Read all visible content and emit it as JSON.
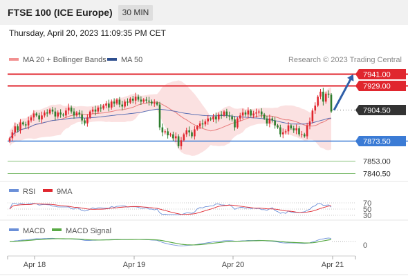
{
  "header": {
    "title": "FTSE 100 (ICE Europe)",
    "timeframe": "30 MIN",
    "datetime": "Thursday, April 20, 2023 11:09:35 PM CET"
  },
  "legend": {
    "ma20_label": "MA 20 + Bollinger Bands",
    "ma50_label": "MA 50",
    "credit": "Research © 2023 Trading Central"
  },
  "colors": {
    "resistance": "#e0262e",
    "support_strong": "#3b7bd5",
    "support_weak": "#5aaa46",
    "current": "#333333",
    "bull": "#e0262e",
    "bear": "#2d7d2d",
    "bollinger": "#f7c9c9",
    "ma20": "#e87a7a",
    "ma50": "#5a6fb4",
    "arrow": "#2f5fa8",
    "rsi": "#6a8fd8",
    "rsi_9ma": "#e0262e",
    "macd": "#6a8fd8",
    "macd_signal": "#5aaa46"
  },
  "chart_data": [
    {
      "type": "candlestick",
      "title": "FTSE 100 (ICE Europe) 30 MIN",
      "x_ticks": [
        "Apr 18",
        "Apr 19",
        "Apr 20",
        "Apr 21"
      ],
      "ylim": [
        7835,
        7950
      ],
      "levels": [
        {
          "value": 7941.0,
          "label": "7941.00",
          "kind": "resistance"
        },
        {
          "value": 7929.0,
          "label": "7929.00",
          "kind": "resistance"
        },
        {
          "value": 7904.5,
          "label": "7904.50",
          "kind": "current"
        },
        {
          "value": 7873.5,
          "label": "7873.50",
          "kind": "support"
        },
        {
          "value": 7853.0,
          "label": "7853.00",
          "kind": "support_weak"
        },
        {
          "value": 7840.5,
          "label": "7840.50",
          "kind": "support_weak"
        }
      ],
      "closes": [
        7876,
        7882,
        7888,
        7884,
        7892,
        7890,
        7889,
        7894,
        7897,
        7901,
        7899,
        7895,
        7899,
        7902,
        7901,
        7905,
        7903,
        7898,
        7902,
        7900,
        7899,
        7904,
        7907,
        7903,
        7899,
        7902,
        7900,
        7894,
        7891,
        7897,
        7903,
        7905,
        7903,
        7907,
        7906,
        7909,
        7911,
        7907,
        7913,
        7911,
        7915,
        7910,
        7908,
        7913,
        7912,
        7916,
        7914,
        7918,
        7915,
        7913,
        7915,
        7914,
        7913,
        7911,
        7912,
        7910,
        7887,
        7882,
        7883,
        7879,
        7880,
        7876,
        7878,
        7868,
        7874,
        7880,
        7884,
        7882,
        7878,
        7885,
        7888,
        7891,
        7890,
        7893,
        7896,
        7895,
        7898,
        7895,
        7900,
        7899,
        7903,
        7899,
        7898,
        7895,
        7887,
        7896,
        7899,
        7902,
        7900,
        7904,
        7899,
        7901,
        7902,
        7903,
        7900,
        7896,
        7891,
        7896,
        7894,
        7889,
        7887,
        7880,
        7882,
        7883,
        7889,
        7886,
        7884,
        7886,
        7880,
        7880,
        7878,
        7889,
        7893,
        7904,
        7909,
        7918,
        7923,
        7913,
        7921,
        7920,
        7903
      ],
      "bollinger": {
        "upper_max": 7935,
        "lower_min": 7865
      }
    },
    {
      "type": "line",
      "title": "RSI",
      "series": [
        {
          "name": "RSI"
        },
        {
          "name": "9MA"
        }
      ],
      "y_ticks": [
        70,
        50,
        30
      ]
    },
    {
      "type": "line",
      "title": "MACD",
      "series": [
        {
          "name": "MACD"
        },
        {
          "name": "MACD Signal"
        }
      ],
      "y_ticks": [
        0
      ]
    }
  ]
}
